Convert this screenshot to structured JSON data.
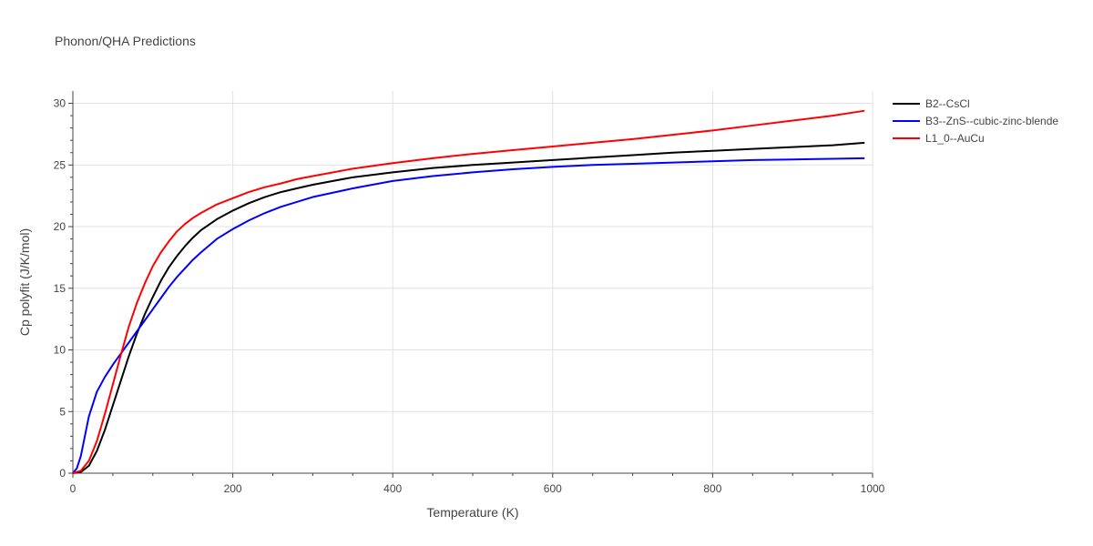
{
  "chart_data": {
    "type": "line",
    "title": "Phonon/QHA Predictions",
    "xlabel": "Temperature (K)",
    "ylabel": "Cp polyfit (J/K/mol)",
    "xlim": [
      0,
      1000
    ],
    "ylim": [
      0,
      31
    ],
    "xticks": [
      0,
      200,
      400,
      600,
      800,
      1000
    ],
    "yticks": [
      0,
      5,
      10,
      15,
      20,
      25,
      30
    ],
    "grid": true,
    "legend_position": "top-right-outside",
    "series": [
      {
        "name": "B2--CsCl",
        "color": "#000000",
        "x": [
          0,
          10,
          20,
          30,
          40,
          50,
          60,
          70,
          80,
          90,
          100,
          110,
          120,
          130,
          140,
          150,
          160,
          180,
          200,
          220,
          240,
          260,
          280,
          300,
          350,
          400,
          450,
          500,
          550,
          600,
          650,
          700,
          750,
          800,
          850,
          900,
          950,
          990
        ],
        "y": [
          0,
          0.1,
          0.6,
          1.8,
          3.5,
          5.5,
          7.5,
          9.5,
          11.3,
          12.9,
          14.3,
          15.6,
          16.7,
          17.6,
          18.4,
          19.1,
          19.7,
          20.6,
          21.3,
          21.9,
          22.4,
          22.8,
          23.1,
          23.4,
          24.0,
          24.4,
          24.75,
          25.0,
          25.2,
          25.4,
          25.6,
          25.8,
          26.0,
          26.15,
          26.3,
          26.45,
          26.6,
          26.8
        ]
      },
      {
        "name": "B3--ZnS--cubic-zinc-blende",
        "color": "#0000ff",
        "x": [
          0,
          5,
          10,
          15,
          20,
          30,
          40,
          50,
          60,
          70,
          80,
          90,
          100,
          110,
          120,
          130,
          140,
          150,
          160,
          180,
          200,
          220,
          240,
          260,
          280,
          300,
          350,
          400,
          450,
          500,
          550,
          600,
          650,
          700,
          750,
          800,
          850,
          900,
          950,
          990
        ],
        "y": [
          0,
          0.4,
          1.4,
          3.0,
          4.6,
          6.6,
          7.8,
          8.8,
          9.7,
          10.6,
          11.5,
          12.4,
          13.3,
          14.2,
          15.1,
          15.9,
          16.6,
          17.3,
          17.9,
          19.0,
          19.8,
          20.5,
          21.1,
          21.6,
          22.0,
          22.4,
          23.1,
          23.7,
          24.1,
          24.4,
          24.65,
          24.85,
          25.0,
          25.1,
          25.2,
          25.3,
          25.4,
          25.45,
          25.5,
          25.55
        ]
      },
      {
        "name": "L1_0--AuCu",
        "color": "#ff0000",
        "x": [
          0,
          10,
          20,
          30,
          40,
          50,
          60,
          70,
          80,
          90,
          100,
          110,
          120,
          130,
          140,
          150,
          160,
          180,
          200,
          220,
          240,
          260,
          280,
          300,
          350,
          400,
          450,
          500,
          550,
          600,
          650,
          700,
          750,
          800,
          850,
          900,
          950,
          990
        ],
        "y": [
          0,
          0.2,
          1.0,
          2.6,
          4.8,
          7.2,
          9.6,
          11.9,
          13.8,
          15.4,
          16.8,
          17.9,
          18.8,
          19.6,
          20.2,
          20.7,
          21.1,
          21.8,
          22.3,
          22.8,
          23.2,
          23.5,
          23.85,
          24.1,
          24.7,
          25.15,
          25.55,
          25.9,
          26.2,
          26.5,
          26.8,
          27.1,
          27.45,
          27.8,
          28.2,
          28.6,
          29.0,
          29.4
        ]
      }
    ]
  }
}
